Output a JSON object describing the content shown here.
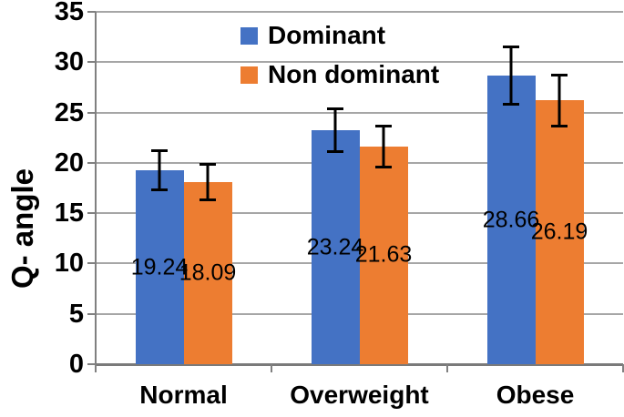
{
  "chart_data": {
    "type": "bar",
    "title": "",
    "ylabel": "Q- angle",
    "xlabel": "",
    "categories": [
      "Normal",
      "Overweight",
      "Obese"
    ],
    "series": [
      {
        "name": "Dominant",
        "color": "#4472C4",
        "values": [
          19.24,
          23.24,
          28.66
        ],
        "value_labels": [
          "19.24",
          "23.24",
          "28.66"
        ],
        "errors": [
          2.0,
          2.2,
          2.9
        ]
      },
      {
        "name": "Non dominant",
        "color": "#ED7D31",
        "values": [
          18.09,
          21.63,
          26.19
        ],
        "value_labels": [
          "18.09",
          "21.63",
          "26.19"
        ],
        "errors": [
          1.8,
          2.1,
          2.6
        ]
      }
    ],
    "ylim": [
      0,
      35
    ],
    "yticks": [
      0,
      5,
      10,
      15,
      20,
      25,
      30,
      35
    ],
    "grid": true,
    "error_bars": true,
    "legend_position": "top-center",
    "data_label_position": "inside-center",
    "colors": {
      "axis": "#808080",
      "gridline": "#a6a6a6",
      "text": "#000000",
      "error_bar": "#000000"
    }
  }
}
